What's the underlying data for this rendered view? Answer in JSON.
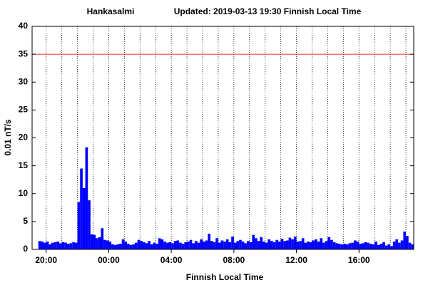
{
  "chart_data": {
    "type": "bar",
    "title": "Hankasalmi",
    "subtitle": "Updated: 2019-03-13 19:30 Finnish Local Time",
    "xlabel": "Finnish Local Time",
    "ylabel": "0.01 nT/s",
    "color": "#0000ff",
    "bar_width": 10,
    "threshold": 35,
    "threshold_color": "#e03030",
    "xlim": [
      -54,
      1410
    ],
    "xticks": [
      {
        "value": 0,
        "label": "20:00"
      },
      {
        "value": 240,
        "label": "00:00"
      },
      {
        "value": 480,
        "label": "04:00"
      },
      {
        "value": 720,
        "label": "08:00"
      },
      {
        "value": 960,
        "label": "12:00"
      },
      {
        "value": 1200,
        "label": "16:00"
      }
    ],
    "xgrid": [
      0,
      60,
      120,
      180,
      240,
      300,
      360,
      420,
      480,
      540,
      600,
      660,
      720,
      780,
      840,
      900,
      960,
      1020,
      1080,
      1140,
      1200,
      1260,
      1320,
      1380
    ],
    "ylim": [
      0,
      40
    ],
    "yticks": [
      0,
      5,
      10,
      15,
      20,
      25,
      30,
      35,
      40
    ],
    "x": [
      -30,
      -20,
      -10,
      0,
      10,
      20,
      30,
      40,
      50,
      60,
      70,
      80,
      90,
      100,
      110,
      120,
      130,
      140,
      150,
      160,
      170,
      180,
      190,
      200,
      210,
      220,
      230,
      240,
      250,
      260,
      270,
      280,
      290,
      300,
      310,
      320,
      330,
      340,
      350,
      360,
      370,
      380,
      390,
      400,
      410,
      420,
      430,
      440,
      450,
      460,
      470,
      480,
      490,
      500,
      510,
      520,
      530,
      540,
      550,
      560,
      570,
      580,
      590,
      600,
      610,
      620,
      630,
      640,
      650,
      660,
      670,
      680,
      690,
      700,
      710,
      720,
      730,
      740,
      750,
      760,
      770,
      780,
      790,
      800,
      810,
      820,
      830,
      840,
      850,
      860,
      870,
      880,
      890,
      900,
      910,
      920,
      930,
      940,
      950,
      960,
      970,
      980,
      990,
      1000,
      1010,
      1020,
      1030,
      1040,
      1050,
      1060,
      1070,
      1080,
      1090,
      1100,
      1110,
      1120,
      1130,
      1140,
      1150,
      1160,
      1170,
      1180,
      1190,
      1200,
      1210,
      1220,
      1230,
      1240,
      1250,
      1260,
      1270,
      1280,
      1290,
      1300,
      1310,
      1320,
      1330,
      1340,
      1350,
      1360,
      1370,
      1380,
      1390,
      1400
    ],
    "values": [
      1.5,
      1.4,
      1.2,
      1.4,
      0.9,
      1.2,
      1.3,
      1.4,
      1.1,
      1.3,
      1.2,
      1.0,
      1.1,
      1.3,
      1.2,
      8.5,
      14.5,
      11,
      18.3,
      8.8,
      2.7,
      2.6,
      2.0,
      2.2,
      3.8,
      1.7,
      1.6,
      1.4,
      0.9,
      0.8,
      0.9,
      1.0,
      1.8,
      1.4,
      1.0,
      0.8,
      0.9,
      1.2,
      1.7,
      1.5,
      1.3,
      1.1,
      1.5,
      0.9,
      1.2,
      1.0,
      2.0,
      1.8,
      1.4,
      1.2,
      1.3,
      1.1,
      1.5,
      1.6,
      1.2,
      1.0,
      1.3,
      1.4,
      1.7,
      1.1,
      1.5,
      1.2,
      1.8,
      1.4,
      1.6,
      2.8,
      1.5,
      1.3,
      2.0,
      1.2,
      1.6,
      1.4,
      1.8,
      1.3,
      2.3,
      1.2,
      1.5,
      1.7,
      1.4,
      1.1,
      1.5,
      1.3,
      2.6,
      2.0,
      1.5,
      2.2,
      1.4,
      1.2,
      1.8,
      1.5,
      1.3,
      1.7,
      1.4,
      1.9,
      1.5,
      1.6,
      2.1,
      1.8,
      2.3,
      1.4,
      1.5,
      2.0,
      1.2,
      1.4,
      1.3,
      1.6,
      1.8,
      1.4,
      2.0,
      1.2,
      1.5,
      2.2,
      1.7,
      1.3,
      1.1,
      1.0,
      0.9,
      1.0,
      0.9,
      1.1,
      1.2,
      1.6,
      1.4,
      1.0,
      1.1,
      1.3,
      1.2,
      1.0,
      0.9,
      1.4,
      0.8,
      1.0,
      1.3,
      0.7,
      0.9,
      0.6,
      1.4,
      1.8,
      1.2,
      1.6,
      3.2,
      2.4,
      1.2,
      0.9
    ]
  }
}
